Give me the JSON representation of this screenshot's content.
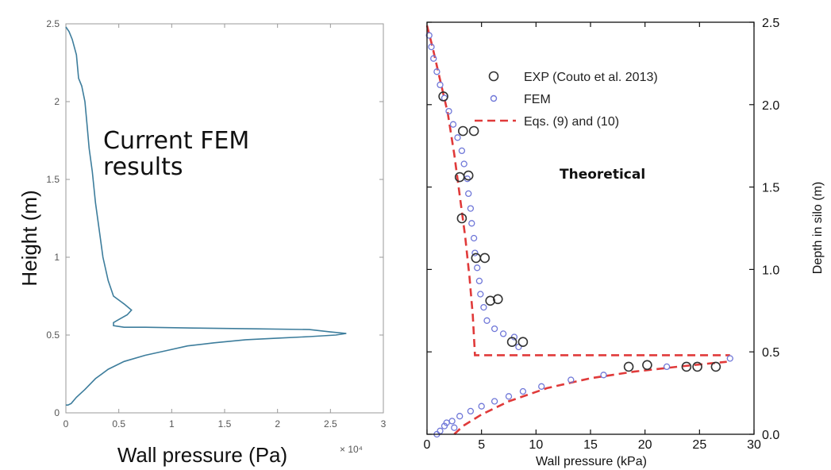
{
  "chart_data": [
    {
      "type": "line",
      "xlabel": "Wall pressure (Pa)",
      "ylabel": "Height (m)",
      "x_exponent_label": "× 10⁴",
      "annotation": "Current FEM results",
      "annotation_lines": [
        "Current FEM",
        "results"
      ],
      "xlim": [
        0,
        3
      ],
      "ylim": [
        0,
        2.5
      ],
      "xticks": [
        "0",
        "0.5",
        "1",
        "1.5",
        "2",
        "2.5",
        "3"
      ],
      "yticks": [
        "0",
        "0.5",
        "1",
        "1.5",
        "2",
        "2.5"
      ],
      "line_color": "#3d7d9c",
      "series": [
        {
          "name": "",
          "x": [
            0.0,
            0.02,
            0.05,
            0.1,
            0.18,
            0.28,
            0.4,
            0.55,
            0.75,
            0.95,
            1.15,
            1.4,
            1.7,
            2.0,
            2.3,
            2.55,
            2.65,
            2.5,
            2.3,
            1.8,
            1.2,
            0.75,
            0.55,
            0.45,
            0.45,
            0.5,
            0.58,
            0.62,
            0.55,
            0.45,
            0.4,
            0.35,
            0.32,
            0.28,
            0.25,
            0.22,
            0.2,
            0.18,
            0.15,
            0.12,
            0.1,
            0.06,
            0.03,
            0.0
          ],
          "y": [
            0.05,
            0.05,
            0.06,
            0.1,
            0.15,
            0.22,
            0.28,
            0.33,
            0.37,
            0.4,
            0.43,
            0.45,
            0.47,
            0.48,
            0.49,
            0.5,
            0.51,
            0.52,
            0.535,
            0.54,
            0.545,
            0.55,
            0.55,
            0.56,
            0.58,
            0.6,
            0.63,
            0.66,
            0.7,
            0.75,
            0.85,
            1.0,
            1.15,
            1.35,
            1.55,
            1.7,
            1.85,
            2.0,
            2.1,
            2.15,
            2.3,
            2.4,
            2.45,
            2.48
          ]
        }
      ]
    },
    {
      "type": "scatter",
      "xlabel": "Wall pressure (kPa)",
      "ylabel": "Depth in silo (m)",
      "annotation": "Theoretical",
      "xlim": [
        0,
        30
      ],
      "ylim": [
        0,
        2.5
      ],
      "xticks": [
        "0",
        "5",
        "10",
        "15",
        "20",
        "25",
        "30"
      ],
      "yticks": [
        "0.0",
        "0.5",
        "1.0",
        "1.5",
        "2.0",
        "2.5"
      ],
      "series": [
        {
          "name": "EXP (Couto et al. 2013)",
          "color": "#333333",
          "marker": "open-circle-large",
          "points": [
            [
              1.5,
              2.05
            ],
            [
              3.3,
              1.84
            ],
            [
              4.3,
              1.84
            ],
            [
              3.0,
              1.56
            ],
            [
              3.8,
              1.57
            ],
            [
              3.2,
              1.31
            ],
            [
              4.5,
              1.07
            ],
            [
              5.3,
              1.07
            ],
            [
              5.8,
              0.81
            ],
            [
              6.5,
              0.82
            ],
            [
              7.8,
              0.56
            ],
            [
              8.8,
              0.56
            ],
            [
              18.5,
              0.41
            ],
            [
              20.2,
              0.42
            ],
            [
              23.8,
              0.41
            ],
            [
              24.8,
              0.41
            ],
            [
              26.5,
              0.41
            ]
          ]
        },
        {
          "name": "FEM",
          "color": "#6f77d8",
          "marker": "open-circle-small",
          "points": [
            [
              0.2,
              2.42
            ],
            [
              0.4,
              2.35
            ],
            [
              0.6,
              2.28
            ],
            [
              0.9,
              2.2
            ],
            [
              1.2,
              2.12
            ],
            [
              1.6,
              2.04
            ],
            [
              2.0,
              1.96
            ],
            [
              2.4,
              1.88
            ],
            [
              2.8,
              1.8
            ],
            [
              3.2,
              1.72
            ],
            [
              3.4,
              1.64
            ],
            [
              3.7,
              1.55
            ],
            [
              3.8,
              1.46
            ],
            [
              4.0,
              1.37
            ],
            [
              4.1,
              1.28
            ],
            [
              4.3,
              1.19
            ],
            [
              4.4,
              1.1
            ],
            [
              4.6,
              1.01
            ],
            [
              4.8,
              0.93
            ],
            [
              4.9,
              0.85
            ],
            [
              5.2,
              0.77
            ],
            [
              5.5,
              0.69
            ],
            [
              6.2,
              0.64
            ],
            [
              7.0,
              0.61
            ],
            [
              8.0,
              0.59
            ],
            [
              8.4,
              0.53
            ],
            [
              27.8,
              0.46
            ],
            [
              22.0,
              0.41
            ],
            [
              16.2,
              0.36
            ],
            [
              13.2,
              0.33
            ],
            [
              10.5,
              0.29
            ],
            [
              8.8,
              0.26
            ],
            [
              7.5,
              0.23
            ],
            [
              6.2,
              0.2
            ],
            [
              5.0,
              0.17
            ],
            [
              4.0,
              0.14
            ],
            [
              3.0,
              0.11
            ],
            [
              2.3,
              0.08
            ],
            [
              1.6,
              0.05
            ],
            [
              1.2,
              0.02
            ],
            [
              1.8,
              0.07
            ],
            [
              0.9,
              0.0
            ],
            [
              2.5,
              0.04
            ]
          ]
        },
        {
          "name": "Eqs. (9) and (10)",
          "color": "#e03a3a",
          "style": "dashed",
          "segments": [
            [
              [
                0.0,
                2.48
              ],
              [
                0.5,
                2.35
              ],
              [
                1.2,
                2.15
              ],
              [
                1.9,
                1.95
              ],
              [
                2.5,
                1.7
              ],
              [
                3.0,
                1.45
              ],
              [
                3.5,
                1.2
              ],
              [
                3.9,
                0.95
              ],
              [
                4.2,
                0.72
              ],
              [
                4.4,
                0.48
              ],
              [
                27.8,
                0.48
              ]
            ],
            [
              [
                2.5,
                0.0
              ],
              [
                3.3,
                0.05
              ],
              [
                5.0,
                0.12
              ],
              [
                7.5,
                0.2
              ],
              [
                11.0,
                0.28
              ],
              [
                15.0,
                0.34
              ],
              [
                19.0,
                0.38
              ],
              [
                23.0,
                0.41
              ],
              [
                26.0,
                0.43
              ],
              [
                27.5,
                0.44
              ]
            ]
          ]
        }
      ]
    }
  ]
}
